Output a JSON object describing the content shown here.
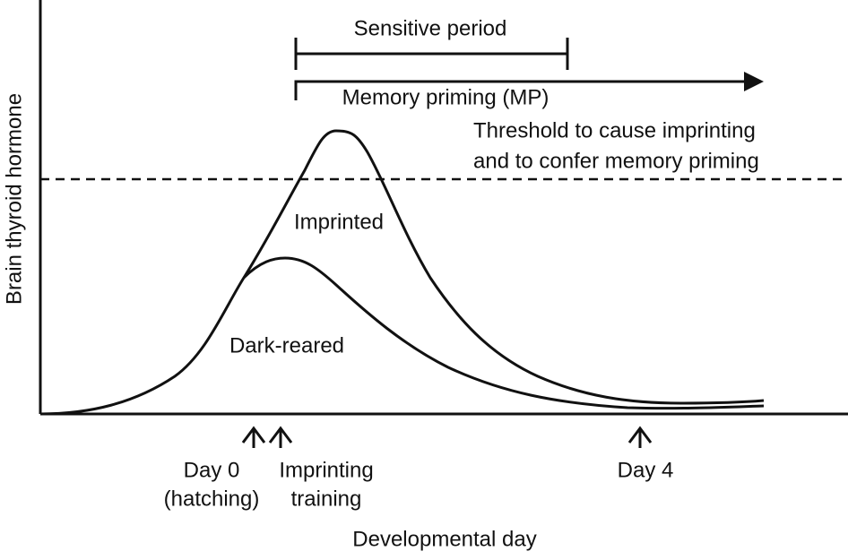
{
  "sensitive_period": "Sensitive period",
  "memory_priming": "Memory priming (MP)",
  "threshold": {
    "line1": "Threshold to cause imprinting",
    "line2": "and to confer memory priming"
  },
  "curves": {
    "imprinted": "Imprinted",
    "dark_reared": "Dark-reared"
  },
  "y_axis_label": "Brain thyroid hormone",
  "markers": {
    "day0": {
      "line1": "Day 0",
      "line2": "(hatching)"
    },
    "training": {
      "line1": "Imprinting",
      "line2": "training"
    },
    "day4": "Day 4"
  },
  "x_axis_label": "Developmental day"
}
